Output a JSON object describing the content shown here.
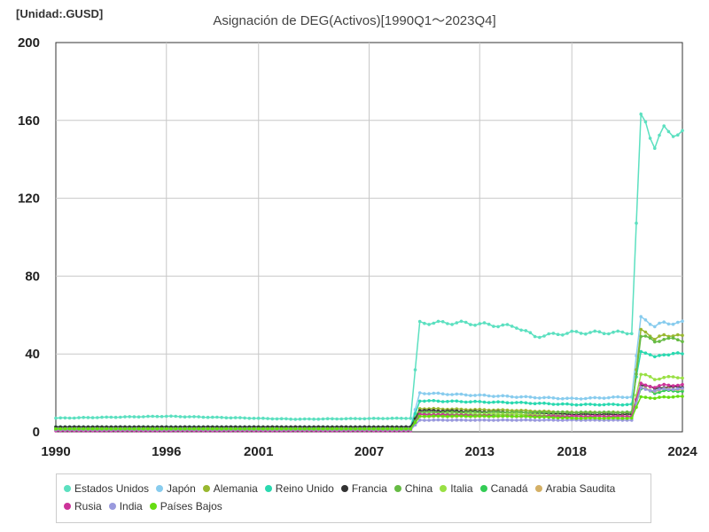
{
  "unit_label": "[Unidad:.GUSD]",
  "chart_data": {
    "type": "line",
    "title": "Asignación de DEG(Activos)[1990Q1～2023Q4]",
    "xlabel": "",
    "ylabel": "",
    "xlim": [
      1990,
      2024
    ],
    "ylim": [
      0,
      200
    ],
    "x_ticks": [
      1990,
      1996,
      2001,
      2007,
      2013,
      2018,
      2024
    ],
    "y_ticks": [
      0,
      40,
      80,
      120,
      160,
      200
    ],
    "grid": true,
    "legend_position": "bottom",
    "series": [
      {
        "name": "Estados Unidos",
        "color": "#5ce0c0",
        "points": [
          [
            1990,
            7
          ],
          [
            1996,
            8
          ],
          [
            2003,
            6.5
          ],
          [
            2009.4,
            7
          ],
          [
            2009.6,
            56
          ],
          [
            2012,
            56
          ],
          [
            2015,
            54
          ],
          [
            2016,
            49
          ],
          [
            2018,
            51
          ],
          [
            2021.4,
            51
          ],
          [
            2021.6,
            162
          ],
          [
            2022,
            159
          ],
          [
            2022.5,
            147
          ],
          [
            2023,
            155
          ],
          [
            2024,
            153
          ]
        ]
      },
      {
        "name": "Japón",
        "color": "#88ccee",
        "points": [
          [
            1990,
            2.5
          ],
          [
            2009.4,
            2.5
          ],
          [
            2009.6,
            20
          ],
          [
            2015,
            18
          ],
          [
            2018,
            17
          ],
          [
            2021.4,
            18
          ],
          [
            2021.6,
            59
          ],
          [
            2022,
            58
          ],
          [
            2022.5,
            54
          ],
          [
            2023,
            56
          ],
          [
            2024,
            56
          ]
        ]
      },
      {
        "name": "Alemania",
        "color": "#99b830",
        "points": [
          [
            1990,
            2.5
          ],
          [
            2009.4,
            2.5
          ],
          [
            2009.6,
            12
          ],
          [
            2015,
            11
          ],
          [
            2018,
            10
          ],
          [
            2021.4,
            10
          ],
          [
            2021.6,
            53
          ],
          [
            2022,
            52
          ],
          [
            2022.5,
            47
          ],
          [
            2023,
            50
          ],
          [
            2024,
            49
          ]
        ]
      },
      {
        "name": "Reino Unido",
        "color": "#2ad9b0",
        "points": [
          [
            1990,
            2.5
          ],
          [
            2009.4,
            2.5
          ],
          [
            2009.6,
            16
          ],
          [
            2015,
            15
          ],
          [
            2018,
            14
          ],
          [
            2021.4,
            14
          ],
          [
            2021.6,
            42
          ],
          [
            2022,
            41
          ],
          [
            2022.5,
            38
          ],
          [
            2023,
            40
          ],
          [
            2024,
            40
          ]
        ]
      },
      {
        "name": "Francia",
        "color": "#333333",
        "points": [
          [
            1990,
            2.5
          ],
          [
            2009.4,
            2.5
          ],
          [
            2009.6,
            11
          ],
          [
            2015,
            10
          ],
          [
            2018,
            9
          ],
          [
            2021.4,
            9
          ],
          [
            2021.6,
            24
          ],
          [
            2022,
            24
          ],
          [
            2022.5,
            22
          ],
          [
            2023,
            23
          ],
          [
            2024,
            23
          ]
        ]
      },
      {
        "name": "China",
        "color": "#66bb44",
        "points": [
          [
            1990,
            1
          ],
          [
            2009.4,
            1
          ],
          [
            2009.6,
            10
          ],
          [
            2015,
            10
          ],
          [
            2018,
            10
          ],
          [
            2021.4,
            10
          ],
          [
            2021.6,
            50
          ],
          [
            2022,
            49
          ],
          [
            2022.5,
            46
          ],
          [
            2023,
            48
          ],
          [
            2024,
            47
          ]
        ]
      },
      {
        "name": "Italia",
        "color": "#99e044",
        "points": [
          [
            1990,
            1.5
          ],
          [
            2009.4,
            1.5
          ],
          [
            2009.6,
            9
          ],
          [
            2015,
            9
          ],
          [
            2018,
            8
          ],
          [
            2021.4,
            8
          ],
          [
            2021.6,
            30
          ],
          [
            2022,
            29
          ],
          [
            2022.5,
            27
          ],
          [
            2023,
            28
          ],
          [
            2024,
            28
          ]
        ]
      },
      {
        "name": "Canadá",
        "color": "#33cc55",
        "points": [
          [
            1990,
            1.5
          ],
          [
            2009.4,
            1.5
          ],
          [
            2009.6,
            9
          ],
          [
            2015,
            8
          ],
          [
            2018,
            8
          ],
          [
            2021.4,
            8
          ],
          [
            2021.6,
            22
          ],
          [
            2022,
            22
          ],
          [
            2022.5,
            20
          ],
          [
            2023,
            21
          ],
          [
            2024,
            21
          ]
        ]
      },
      {
        "name": "Arabia Saudita",
        "color": "#d4b066",
        "points": [
          [
            1990,
            1
          ],
          [
            2009.4,
            1
          ],
          [
            2009.6,
            8
          ],
          [
            2015,
            8
          ],
          [
            2018,
            8
          ],
          [
            2021.4,
            8
          ],
          [
            2021.6,
            23
          ],
          [
            2022,
            22
          ],
          [
            2022.5,
            21
          ],
          [
            2023,
            22
          ],
          [
            2024,
            22
          ]
        ]
      },
      {
        "name": "Rusia",
        "color": "#cc3399",
        "points": [
          [
            1990,
            0.5
          ],
          [
            2009.4,
            0.5
          ],
          [
            2009.6,
            9
          ],
          [
            2015,
            8
          ],
          [
            2018,
            8
          ],
          [
            2021.4,
            8
          ],
          [
            2021.6,
            25
          ],
          [
            2022,
            24
          ],
          [
            2022.5,
            23
          ],
          [
            2023,
            24
          ],
          [
            2024,
            24
          ]
        ]
      },
      {
        "name": "India",
        "color": "#9999dd",
        "points": [
          [
            1990,
            1
          ],
          [
            2009.4,
            1
          ],
          [
            2009.6,
            6
          ],
          [
            2015,
            6
          ],
          [
            2018,
            6
          ],
          [
            2021.4,
            6
          ],
          [
            2021.6,
            23
          ],
          [
            2022,
            22
          ],
          [
            2022.5,
            21
          ],
          [
            2023,
            22
          ],
          [
            2024,
            22
          ]
        ]
      },
      {
        "name": "Países Bajos",
        "color": "#66dd11",
        "points": [
          [
            1990,
            1.5
          ],
          [
            2009.4,
            1.5
          ],
          [
            2009.6,
            8
          ],
          [
            2015,
            8
          ],
          [
            2018,
            7
          ],
          [
            2021.4,
            7
          ],
          [
            2021.6,
            18
          ],
          [
            2022,
            18
          ],
          [
            2022.5,
            17
          ],
          [
            2023,
            18
          ],
          [
            2024,
            18
          ]
        ]
      }
    ]
  }
}
